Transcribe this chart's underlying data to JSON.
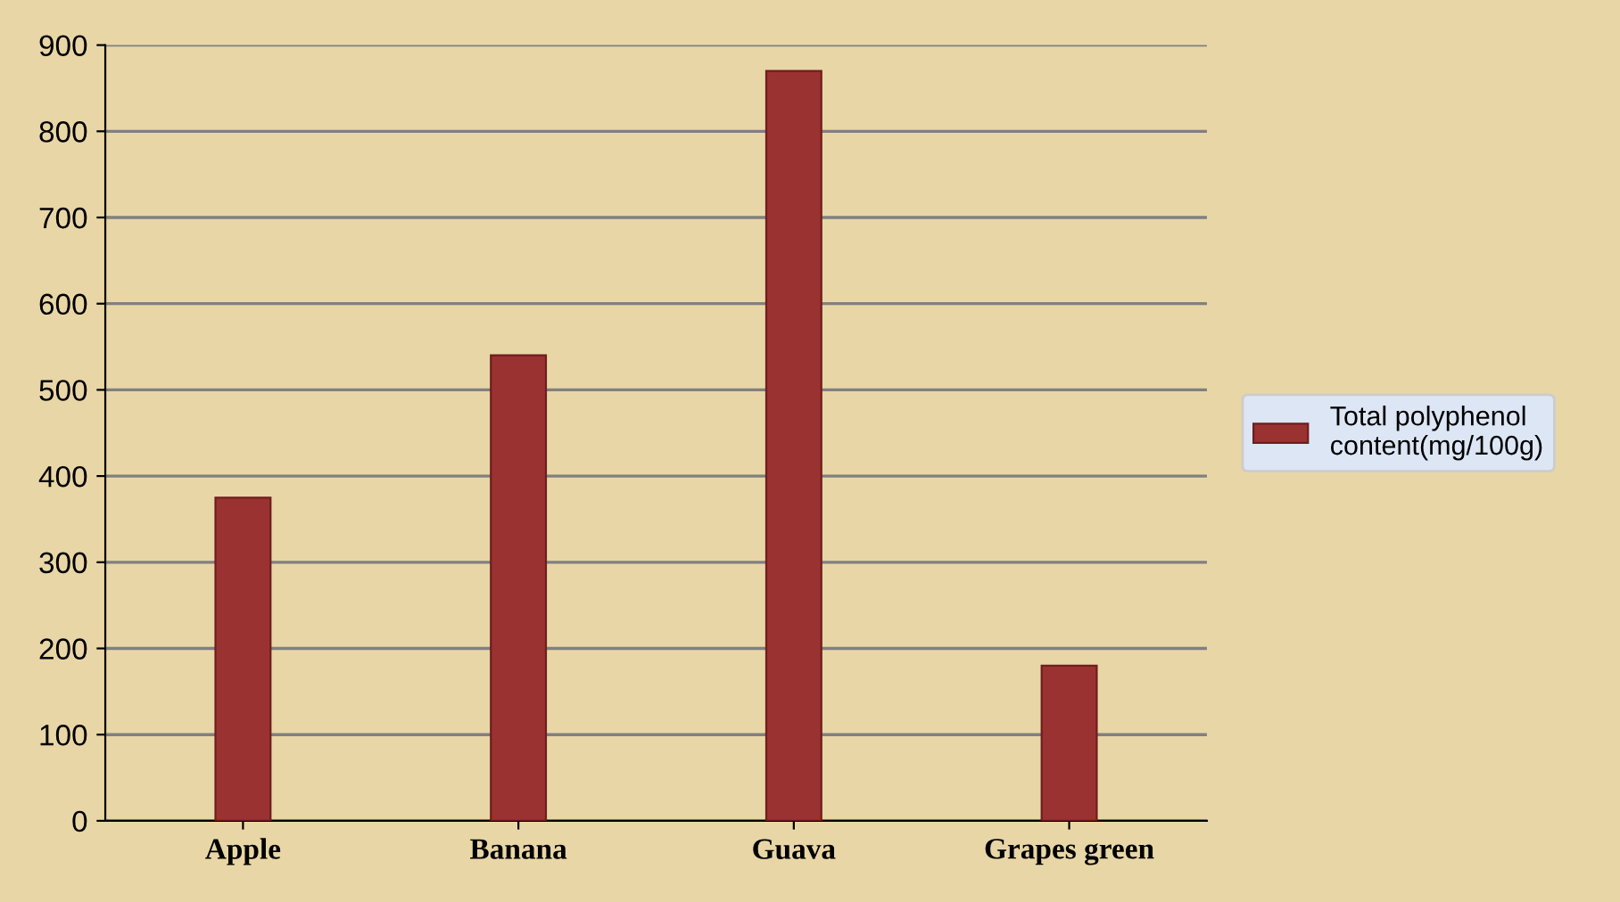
{
  "chart_data": {
    "type": "bar",
    "categories": [
      "Apple",
      "Banana",
      "Guava",
      "Grapes green"
    ],
    "series": [
      {
        "name": "Total polyphenol\ncontent(mg/100g)",
        "color": "#9b3232",
        "values": [
          375,
          540,
          870,
          180
        ]
      }
    ],
    "ylim": [
      0,
      900
    ],
    "yticks": [
      0,
      100,
      200,
      300,
      400,
      500,
      600,
      700,
      800,
      900
    ],
    "grid": "y",
    "legend": "right"
  }
}
